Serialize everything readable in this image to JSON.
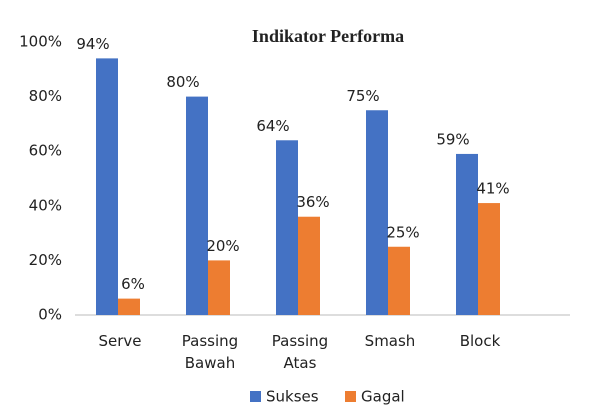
{
  "chart_data": {
    "type": "bar",
    "title": "Indikator Performa",
    "categories": [
      "Serve",
      "Passing Bawah",
      "Passing Atas",
      "Smash",
      "Block"
    ],
    "series": [
      {
        "name": "Sukses",
        "color": "#4472c4",
        "values": [
          94,
          80,
          64,
          75,
          59
        ],
        "value_labels": [
          "94%",
          "80%",
          "64%",
          "75%",
          "59%"
        ]
      },
      {
        "name": "Gagal",
        "color": "#ed7d31",
        "values": [
          6,
          20,
          36,
          25,
          41
        ],
        "value_labels": [
          "6%",
          "20%",
          "36%",
          "25%",
          "41%"
        ]
      }
    ],
    "ylim": [
      0,
      100
    ],
    "yticks": [
      {
        "value": 0,
        "label": "0%"
      },
      {
        "value": 20,
        "label": "20%"
      },
      {
        "value": 40,
        "label": "40%"
      },
      {
        "value": 60,
        "label": "60%"
      },
      {
        "value": 80,
        "label": "80%"
      },
      {
        "value": 100,
        "label": "100%"
      }
    ],
    "legend": "bottom"
  }
}
